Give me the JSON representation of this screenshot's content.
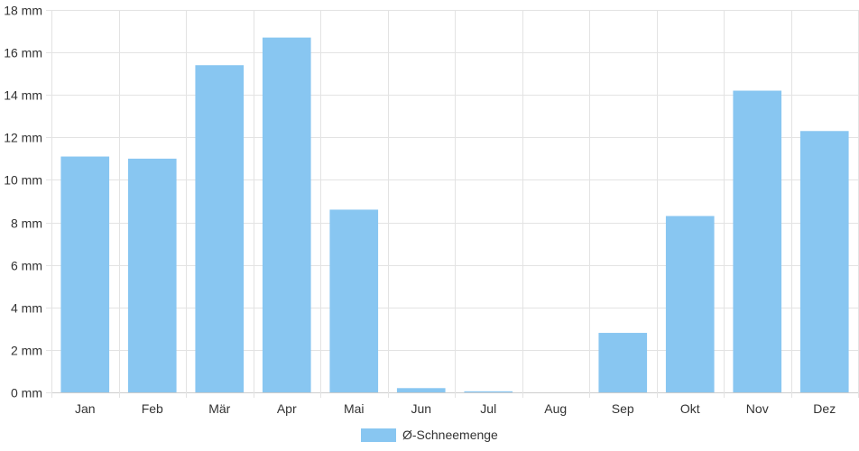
{
  "colors": {
    "bar": "#88c6f1",
    "grid": "#e3e3e3",
    "axis": "#cccccc",
    "text": "#333333"
  },
  "chart_data": {
    "type": "bar",
    "categories": [
      "Jan",
      "Feb",
      "Mär",
      "Apr",
      "Mai",
      "Jun",
      "Jul",
      "Aug",
      "Sep",
      "Okt",
      "Nov",
      "Dez"
    ],
    "series": [
      {
        "name": "Ø-Schneemenge",
        "values": [
          11.1,
          11.0,
          15.4,
          16.7,
          8.6,
          0.2,
          0.05,
          0.0,
          2.8,
          8.3,
          14.2,
          12.3
        ]
      }
    ],
    "ylim": [
      0,
      18
    ],
    "yticks": [
      0,
      2,
      4,
      6,
      8,
      10,
      12,
      14,
      16,
      18
    ],
    "y_unit": "mm",
    "grid": true,
    "legend_position": "bottom-center"
  }
}
